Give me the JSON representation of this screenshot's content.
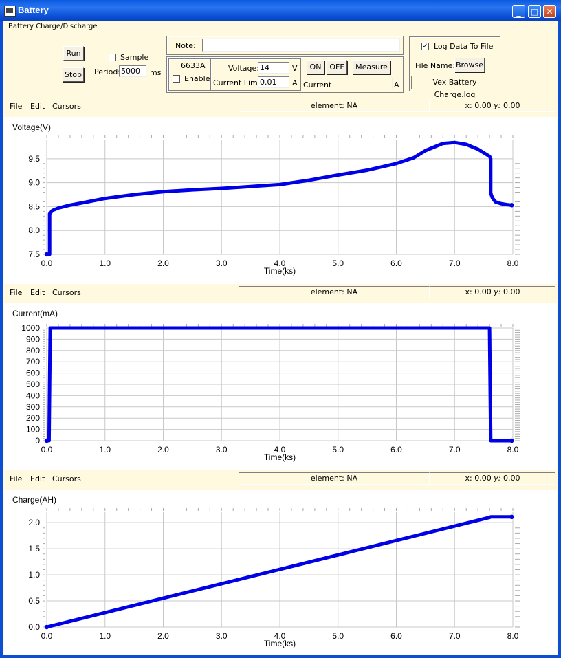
{
  "window": {
    "title": "Battery"
  },
  "group": {
    "label": "Battery Charge/Discharge"
  },
  "controls": {
    "run_label": "Run",
    "stop_label": "Stop",
    "sample_label": "Sample",
    "period_label": "Period:",
    "period_value": "5000",
    "period_unit": "ms",
    "note_label": "Note:",
    "note_value": "",
    "device_label": "6633A",
    "enable_label": "Enable",
    "voltage_label": "Voltage:",
    "voltage_value": "14",
    "voltage_unit": "V",
    "current_limit_label": "Current Limit:",
    "current_limit_value": "0.01",
    "current_limit_unit": "A",
    "on_label": "ON",
    "off_label": "OFF",
    "measure_label": "Measure",
    "current_label": "Current:",
    "current_value": "",
    "current_unit": "A",
    "log_label": "Log Data To File",
    "log_checked": true,
    "filename_label": "File Name:",
    "browse_label": "Browse",
    "filename_value": "Vex Battery Charge.log"
  },
  "menus": {
    "file": "File",
    "edit": "Edit",
    "cursors": "Cursors"
  },
  "status": {
    "element": "element: NA",
    "x_label": "x:",
    "x_value": "0.00",
    "y_label": "y:",
    "y_value": "0.00"
  },
  "colors": {
    "series": "#0000e6",
    "grid": "#c8c8c8",
    "background": "#fffadf"
  },
  "chart_data": [
    {
      "type": "line",
      "ylabel": "Voltage(V)",
      "xlabel": "Time(ks)",
      "xlim": [
        0,
        8
      ],
      "ylim": [
        7.5,
        9.9
      ],
      "xticks": [
        "0.0",
        "1.0",
        "2.0",
        "3.0",
        "4.0",
        "5.0",
        "6.0",
        "7.0",
        "8.0"
      ],
      "yticks": [
        7.5,
        8.0,
        8.5,
        9.0,
        9.5
      ],
      "ytick_labels": [
        "7.5",
        "8.0",
        "8.5",
        "9.0",
        "9.5"
      ],
      "grid": true,
      "series": [
        {
          "x": [
            0.0,
            0.05,
            0.05,
            0.1,
            0.2,
            0.4,
            0.7,
            1.0,
            1.5,
            2.0,
            2.5,
            3.0,
            3.5,
            4.0,
            4.5,
            5.0,
            5.5,
            6.0,
            6.3,
            6.5,
            6.8,
            7.0,
            7.2,
            7.4,
            7.6,
            7.62,
            7.62,
            7.65,
            7.7,
            7.8,
            7.9,
            7.98
          ],
          "y": [
            7.5,
            7.5,
            8.35,
            8.42,
            8.47,
            8.53,
            8.6,
            8.67,
            8.75,
            8.81,
            8.85,
            8.88,
            8.92,
            8.96,
            9.05,
            9.16,
            9.26,
            9.4,
            9.52,
            9.67,
            9.82,
            9.84,
            9.8,
            9.7,
            9.55,
            9.5,
            8.78,
            8.68,
            8.6,
            8.56,
            8.54,
            8.53
          ]
        }
      ]
    },
    {
      "type": "line",
      "ylabel": "Current(mA)",
      "xlabel": "Time(ks)",
      "xlim": [
        0,
        8
      ],
      "ylim": [
        0,
        1000
      ],
      "xticks": [
        "0.0",
        "1.0",
        "2.0",
        "3.0",
        "4.0",
        "5.0",
        "6.0",
        "7.0",
        "8.0"
      ],
      "yticks": [
        0,
        100,
        200,
        300,
        400,
        500,
        600,
        700,
        800,
        900,
        1000
      ],
      "ytick_labels": [
        "0",
        "100",
        "200",
        "300",
        "400",
        "500",
        "600",
        "700",
        "800",
        "900",
        "1000"
      ],
      "grid": true,
      "series": [
        {
          "x": [
            0.0,
            0.04,
            0.05,
            0.06,
            7.6,
            7.62,
            7.98
          ],
          "y": [
            0,
            0,
            500,
            1000,
            1000,
            0,
            0
          ]
        }
      ]
    },
    {
      "type": "line",
      "ylabel": "Charge(AH)",
      "xlabel": "Time(ks)",
      "xlim": [
        0,
        8
      ],
      "ylim": [
        0,
        2.2
      ],
      "xticks": [
        "0.0",
        "1.0",
        "2.0",
        "3.0",
        "4.0",
        "5.0",
        "6.0",
        "7.0",
        "8.0"
      ],
      "yticks": [
        0.0,
        0.5,
        1.0,
        1.5,
        2.0
      ],
      "ytick_labels": [
        "0.0",
        "0.5",
        "1.0",
        "1.5",
        "2.0"
      ],
      "grid": true,
      "series": [
        {
          "x": [
            0.0,
            7.6,
            7.62,
            7.98
          ],
          "y": [
            0.0,
            2.1,
            2.11,
            2.11
          ]
        }
      ]
    }
  ]
}
